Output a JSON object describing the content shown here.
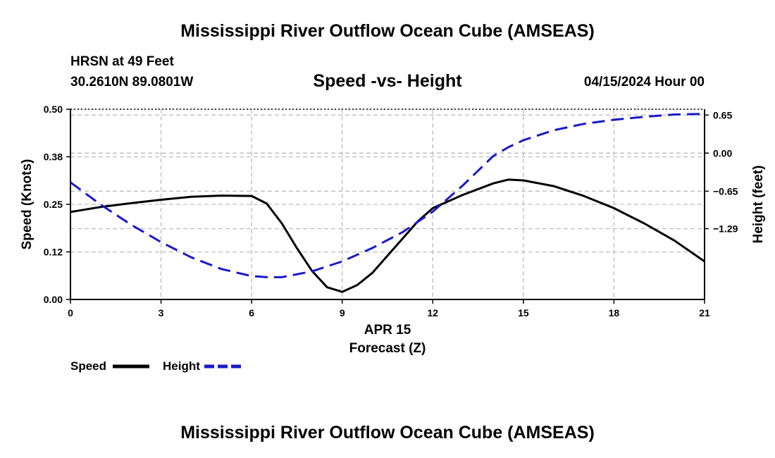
{
  "header": {
    "title": "Mississippi River Outflow Ocean Cube (AMSEAS)",
    "station": "HRSN at 49 Feet",
    "coords": "30.2610N  89.0801W",
    "subtitle": "Speed -vs- Height",
    "datetime": "04/15/2024 Hour 00"
  },
  "footer": {
    "title": "Mississippi River Outflow Ocean Cube (AMSEAS)"
  },
  "chart_data": {
    "type": "line",
    "title": "Speed -vs- Height",
    "xlabel_date": "APR 15",
    "xlabel": "Forecast (Z)",
    "ylabel_left": "Speed (Knots)",
    "ylabel_right": "Height (feet)",
    "xlim": [
      0,
      21
    ],
    "ylim_left": [
      0,
      0.5
    ],
    "ylim_right": [
      -2.5,
      0.75
    ],
    "x_ticks": [
      0,
      3,
      6,
      9,
      12,
      15,
      18,
      21
    ],
    "x_tick_labels": [
      "0",
      "3",
      "6",
      "9",
      "12",
      "15",
      "18",
      "21"
    ],
    "y_left_ticks": [
      0.0,
      0.125,
      0.25,
      0.375,
      0.5
    ],
    "y_left_tick_labels": [
      "0.00",
      "0.12",
      "0.25",
      "0.38",
      "0.50"
    ],
    "y_right_ticks": [
      -1.29,
      -0.65,
      0.0,
      0.65
    ],
    "y_right_tick_labels": [
      "−1.29",
      "−0.65",
      "0.00",
      "0.65"
    ],
    "grid": true,
    "series": [
      {
        "name": "Speed",
        "axis": "left",
        "color": "#000000",
        "style": "solid",
        "x": [
          0,
          1,
          2,
          3,
          4,
          5,
          6,
          6.5,
          7,
          7.5,
          8,
          8.5,
          9,
          9.5,
          10,
          10.5,
          11,
          11.5,
          12,
          13,
          14,
          14.5,
          15,
          16,
          17,
          18,
          19,
          20,
          21
        ],
        "values": [
          0.23,
          0.243,
          0.253,
          0.262,
          0.27,
          0.273,
          0.272,
          0.252,
          0.2,
          0.135,
          0.075,
          0.032,
          0.02,
          0.038,
          0.07,
          0.115,
          0.16,
          0.205,
          0.24,
          0.275,
          0.305,
          0.315,
          0.313,
          0.298,
          0.272,
          0.24,
          0.2,
          0.155,
          0.1
        ]
      },
      {
        "name": "Height",
        "axis": "right",
        "color": "#1a1acc",
        "style": "dashed",
        "x": [
          0,
          1,
          2,
          3,
          4,
          5,
          6,
          6.5,
          7,
          8,
          9,
          10,
          11,
          12,
          13,
          14,
          14.5,
          15,
          16,
          17,
          18,
          19,
          20,
          21
        ],
        "values": [
          -0.5,
          -0.88,
          -1.22,
          -1.52,
          -1.78,
          -1.98,
          -2.1,
          -2.12,
          -2.12,
          -2.02,
          -1.85,
          -1.62,
          -1.35,
          -1.0,
          -0.55,
          -0.05,
          0.1,
          0.22,
          0.39,
          0.5,
          0.57,
          0.62,
          0.66,
          0.67
        ]
      }
    ],
    "legend": [
      {
        "label": "Speed",
        "color": "#000000",
        "style": "solid"
      },
      {
        "label": "Height",
        "color": "#1a1acc",
        "style": "dashed"
      }
    ]
  }
}
